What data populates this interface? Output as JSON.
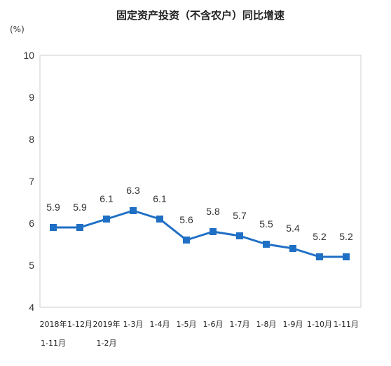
{
  "chart_data": {
    "type": "line",
    "title": "固定资产投资（不含农户）同比增速",
    "unit": "(%)",
    "xlabel": "",
    "ylabel": "",
    "ylim": [
      4,
      10
    ],
    "yticks": [
      "4",
      "5",
      "6",
      "7",
      "8",
      "9",
      "10"
    ],
    "grid": false,
    "categories": [
      [
        "2018年",
        "1-11月"
      ],
      [
        "1-12月"
      ],
      [
        "2019年",
        "1-2月"
      ],
      [
        "1-3月"
      ],
      [
        "1-4月"
      ],
      [
        "1-5月"
      ],
      [
        "1-6月"
      ],
      [
        "1-7月"
      ],
      [
        "1-8月"
      ],
      [
        "1-9月"
      ],
      [
        "1-10月"
      ],
      [
        "1-11月"
      ]
    ],
    "series": [
      {
        "values": [
          5.9,
          5.9,
          6.1,
          6.3,
          6.1,
          5.6,
          5.8,
          5.7,
          5.5,
          5.4,
          5.2,
          5.2
        ],
        "labels": [
          "5.9",
          "5.9",
          "6.1",
          "6.3",
          "6.1",
          "5.6",
          "5.8",
          "5.7",
          "5.5",
          "5.4",
          "5.2",
          "5.2"
        ],
        "color": "#1f6fc5"
      }
    ]
  }
}
